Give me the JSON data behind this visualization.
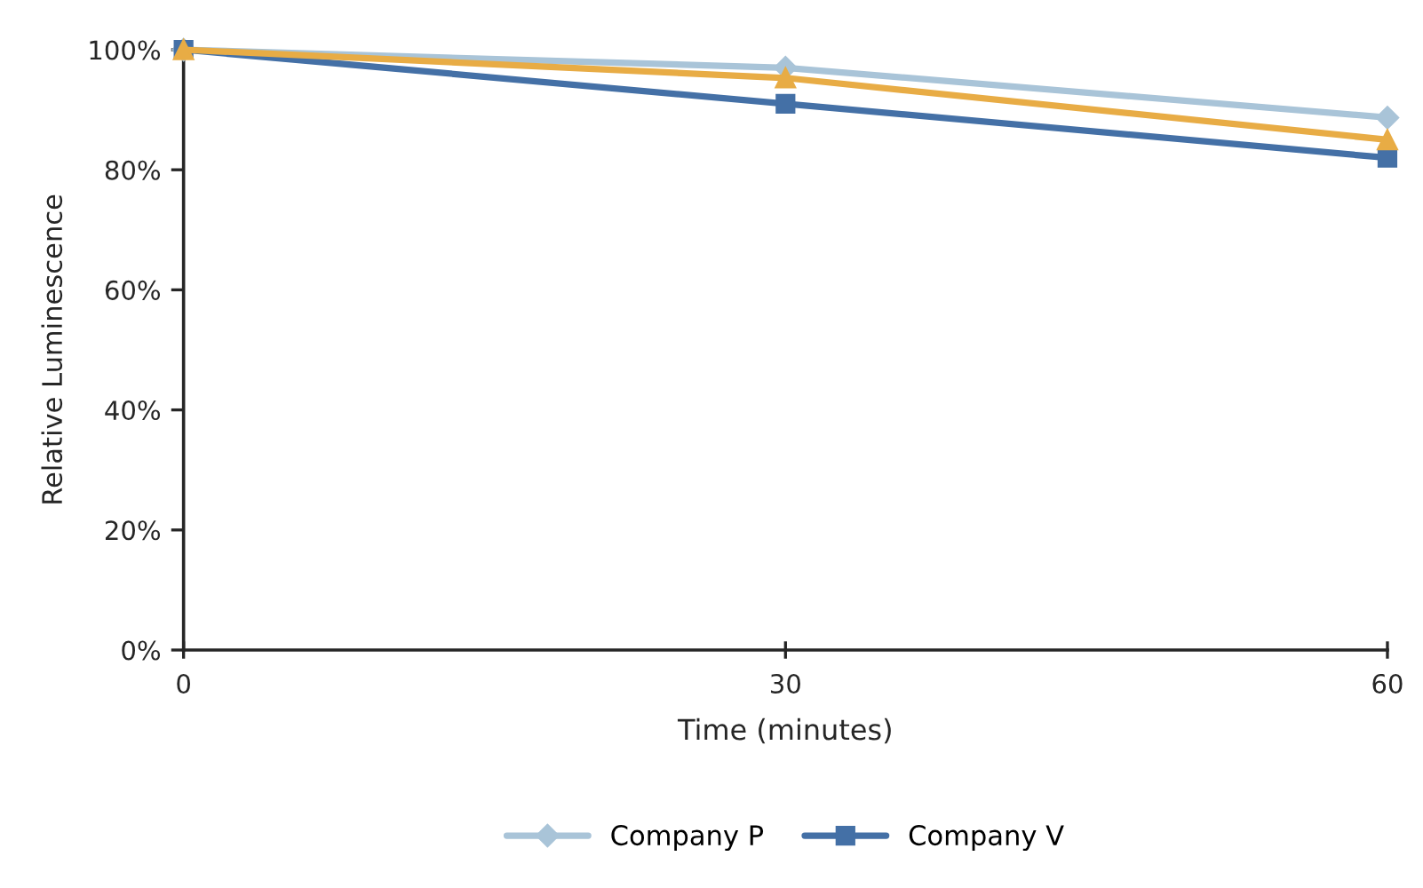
{
  "chart_data": {
    "type": "line",
    "xlabel": "Time (minutes)",
    "ylabel": "Relative Luminescence",
    "x": [
      0,
      30,
      60
    ],
    "series": [
      {
        "name": "Company P",
        "color": "#a9c4d8",
        "marker": "diamond",
        "values": [
          100,
          97,
          88.7
        ]
      },
      {
        "name": "Company V",
        "color": "#4470a6",
        "marker": "square",
        "values": [
          100,
          91,
          82
        ]
      },
      {
        "color": "#e8ac45",
        "marker": "triangle",
        "values": [
          100,
          95.3,
          85
        ]
      }
    ],
    "xlim": [
      0,
      60
    ],
    "xticks": [
      0,
      30,
      60
    ],
    "ylim": [
      0,
      100
    ],
    "yticks": [
      {
        "value": 0,
        "label": "0%"
      },
      {
        "value": 20,
        "label": "20%"
      },
      {
        "value": 40,
        "label": "40%"
      },
      {
        "value": 60,
        "label": "60%"
      },
      {
        "value": 80,
        "label": "80%"
      },
      {
        "value": 100,
        "label": "100%"
      }
    ],
    "grid": false,
    "legend": "bottom",
    "line_style": "solid"
  }
}
